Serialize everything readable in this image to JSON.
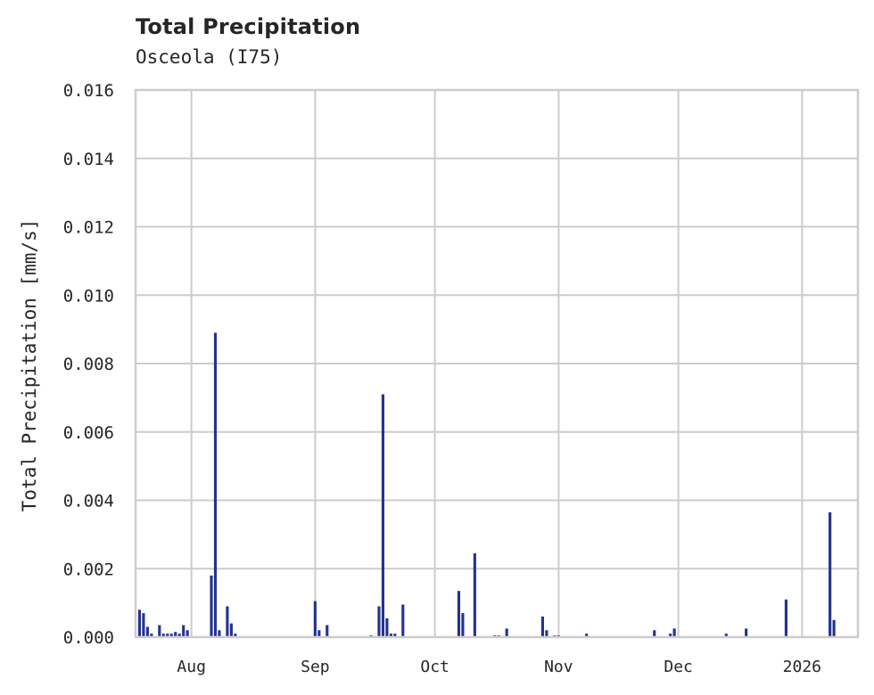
{
  "header": {
    "title": "Total Precipitation",
    "subtitle": "Osceola (I75)"
  },
  "chart_data": {
    "type": "bar",
    "title": "Total Precipitation",
    "subtitle": "Osceola (I75)",
    "xlabel": "",
    "ylabel": "Total Precipitation [mm/s]",
    "ylim": [
      0,
      0.016
    ],
    "xlim": [
      "2025-07-18",
      "2026-01-15"
    ],
    "grid": true,
    "color": "#23338f",
    "yticks": [
      "0.000",
      "0.002",
      "0.004",
      "0.006",
      "0.008",
      "0.010",
      "0.012",
      "0.014",
      "0.016"
    ],
    "xticks": [
      {
        "label": "Aug",
        "date": "2025-08-01"
      },
      {
        "label": "Sep",
        "date": "2025-09-01"
      },
      {
        "label": "Oct",
        "date": "2025-10-01"
      },
      {
        "label": "Nov",
        "date": "2025-11-01"
      },
      {
        "label": "Dec",
        "date": "2025-12-01"
      },
      {
        "label": "2026",
        "date": "2026-01-01"
      }
    ],
    "x": [
      "2025-07-19",
      "2025-07-20",
      "2025-07-21",
      "2025-07-22",
      "2025-07-24",
      "2025-07-25",
      "2025-07-26",
      "2025-07-27",
      "2025-07-28",
      "2025-07-29",
      "2025-07-30",
      "2025-07-31",
      "2025-08-06",
      "2025-08-07",
      "2025-08-08",
      "2025-08-10",
      "2025-08-11",
      "2025-08-12",
      "2025-09-01",
      "2025-09-02",
      "2025-09-04",
      "2025-09-15",
      "2025-09-17",
      "2025-09-18",
      "2025-09-19",
      "2025-09-20",
      "2025-09-21",
      "2025-09-23",
      "2025-10-07",
      "2025-10-08",
      "2025-10-11",
      "2025-10-16",
      "2025-10-17",
      "2025-10-19",
      "2025-10-28",
      "2025-10-29",
      "2025-10-31",
      "2025-11-01",
      "2025-11-08",
      "2025-11-25",
      "2025-11-29",
      "2025-11-30",
      "2025-12-13",
      "2025-12-18",
      "2025-12-28",
      "2026-01-08",
      "2026-01-09"
    ],
    "values": [
      0.0008,
      0.0007,
      0.0003,
      0.0001,
      0.00035,
      0.0001,
      0.0001,
      0.0001,
      0.00015,
      0.0001,
      0.00035,
      0.0002,
      0.0018,
      0.0089,
      0.0002,
      0.0009,
      0.0004,
      0.0001,
      0.00105,
      0.0002,
      0.00035,
      5e-05,
      0.0009,
      0.0071,
      0.00055,
      0.0001,
      0.0001,
      0.00095,
      0.00135,
      0.0007,
      0.00245,
      5e-05,
      5e-05,
      0.00025,
      0.0006,
      0.0002,
      5e-05,
      5e-05,
      0.0001,
      0.0002,
      0.0001,
      0.00025,
      0.0001,
      0.00025,
      0.0011,
      0.00365,
      0.0005
    ]
  }
}
